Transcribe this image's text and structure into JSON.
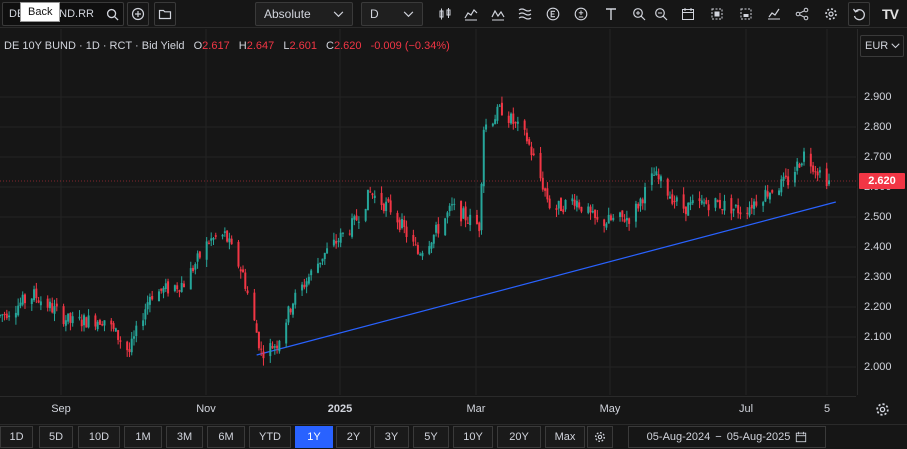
{
  "toolbar": {
    "symbol_text": "DE10YBUND.RR",
    "back_tooltip": "Back",
    "scale_mode": "Absolute",
    "interval": "D",
    "logo_text": "TV"
  },
  "legend": {
    "title": "DE 10Y BUND · 1D · RCT · Bid Yield",
    "open_label": "O",
    "open": "2.617",
    "high_label": "H",
    "high": "2.647",
    "low_label": "L",
    "low": "2.601",
    "close_label": "C",
    "close": "2.620",
    "change": "-0.009 (−0.34%)"
  },
  "currency": "EUR",
  "price_tag": "2.620",
  "y_ticks": [
    "2.900",
    "2.800",
    "2.700",
    "2.600",
    "2.500",
    "2.400",
    "2.300",
    "2.200",
    "2.100",
    "2.000"
  ],
  "x_ticks": [
    {
      "label": "Sep",
      "bold": false
    },
    {
      "label": "Nov",
      "bold": false
    },
    {
      "label": "2025",
      "bold": true
    },
    {
      "label": "Mar",
      "bold": false
    },
    {
      "label": "May",
      "bold": false
    },
    {
      "label": "Jul",
      "bold": false
    },
    {
      "label": "5",
      "bold": false
    }
  ],
  "ranges": [
    "1D",
    "5D",
    "10D",
    "1M",
    "3M",
    "6M",
    "YTD",
    "1Y",
    "2Y",
    "3Y",
    "5Y",
    "10Y",
    "20Y",
    "Max"
  ],
  "active_range": "1Y",
  "date_range": {
    "from": "05-Aug-2024",
    "sep": "−",
    "to": "05-Aug-2025"
  },
  "colors": {
    "up": "#26a69a",
    "down": "#f23645",
    "trendline": "#2962ff",
    "background": "#161616",
    "grid": "#242424"
  },
  "chart_data": {
    "type": "candlestick",
    "ylim": [
      1.96,
      2.99
    ],
    "grid": true,
    "trendline": {
      "from": [
        "2024-11-26",
        2.04
      ],
      "to": [
        "2025-08-08",
        2.55
      ]
    },
    "anchors": [
      [
        "2024-08-05",
        2.17
      ],
      [
        "2024-08-20",
        2.24
      ],
      [
        "2024-09-05",
        2.15
      ],
      [
        "2024-09-20",
        2.16
      ],
      [
        "2024-10-01",
        2.05
      ],
      [
        "2024-10-10",
        2.24
      ],
      [
        "2024-10-25",
        2.28
      ],
      [
        "2024-11-05",
        2.42
      ],
      [
        "2024-11-12",
        2.44
      ],
      [
        "2024-11-20",
        2.31
      ],
      [
        "2024-11-28",
        2.05
      ],
      [
        "2024-12-05",
        2.08
      ],
      [
        "2024-12-12",
        2.22
      ],
      [
        "2024-12-25",
        2.37
      ],
      [
        "2025-01-08",
        2.48
      ],
      [
        "2025-01-15",
        2.58
      ],
      [
        "2025-01-25",
        2.52
      ],
      [
        "2025-02-05",
        2.38
      ],
      [
        "2025-02-12",
        2.44
      ],
      [
        "2025-02-20",
        2.53
      ],
      [
        "2025-03-04",
        2.47
      ],
      [
        "2025-03-06",
        2.8
      ],
      [
        "2025-03-14",
        2.86
      ],
      [
        "2025-03-25",
        2.76
      ],
      [
        "2025-04-05",
        2.52
      ],
      [
        "2025-04-15",
        2.56
      ],
      [
        "2025-04-25",
        2.48
      ],
      [
        "2025-05-10",
        2.5
      ],
      [
        "2025-05-20",
        2.64
      ],
      [
        "2025-06-01",
        2.53
      ],
      [
        "2025-06-15",
        2.55
      ],
      [
        "2025-06-28",
        2.52
      ],
      [
        "2025-07-08",
        2.58
      ],
      [
        "2025-07-18",
        2.62
      ],
      [
        "2025-07-25",
        2.71
      ],
      [
        "2025-08-01",
        2.65
      ],
      [
        "2025-08-05",
        2.62
      ]
    ]
  }
}
